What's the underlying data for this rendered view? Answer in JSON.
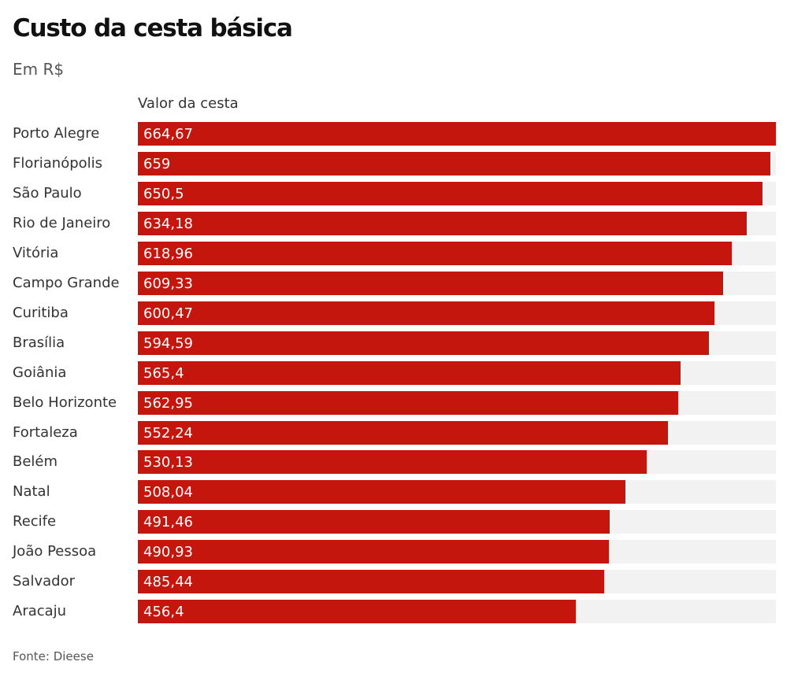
{
  "chart_data": {
    "type": "bar",
    "orientation": "horizontal",
    "title": "Custo da cesta básica",
    "subtitle": "Em R$",
    "column_header": "Valor da cesta",
    "categories": [
      "Porto Alegre",
      "Florianópolis",
      "São Paulo",
      "Rio de Janeiro",
      "Vitória",
      "Campo Grande",
      "Curitiba",
      "Brasília",
      "Goiânia",
      "Belo Horizonte",
      "Fortaleza",
      "Belém",
      "Natal",
      "Recife",
      "João Pessoa",
      "Salvador",
      "Aracaju"
    ],
    "values": [
      664.67,
      659,
      650.5,
      634.18,
      618.96,
      609.33,
      600.47,
      594.59,
      565.4,
      562.95,
      552.24,
      530.13,
      508.04,
      491.46,
      490.93,
      485.44,
      456.4
    ],
    "value_labels": [
      "664,67",
      "659",
      "650,5",
      "634,18",
      "618,96",
      "609,33",
      "600,47",
      "594,59",
      "565,4",
      "562,95",
      "552,24",
      "530,13",
      "508,04",
      "491,46",
      "490,93",
      "485,44",
      "456,4"
    ],
    "xlim": [
      0,
      664.67
    ],
    "grid": false,
    "bar_color": "#c4160c",
    "track_color": "#f2f2f2",
    "source": "Fonte: Dieese"
  }
}
